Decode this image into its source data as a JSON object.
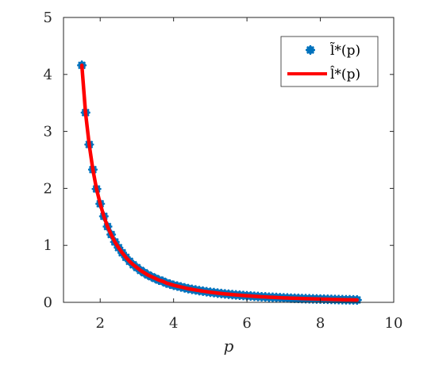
{
  "chart_data": {
    "type": "scatter",
    "xlabel": "p",
    "ylabel": "",
    "xlim": [
      1,
      10
    ],
    "ylim": [
      0,
      5
    ],
    "xticks": [
      "2",
      "4",
      "6",
      "8",
      "10"
    ],
    "yticks": [
      "0",
      "1",
      "2",
      "3",
      "4",
      "5"
    ],
    "grid": false,
    "legend_position": "top-right",
    "series": [
      {
        "name": "l̃*(p)",
        "style": "markers",
        "color": "#0072BD",
        "x": [
          1.5,
          1.6,
          1.7,
          1.8,
          1.9,
          2.0,
          2.1,
          2.2,
          2.3,
          2.4,
          2.5,
          2.6,
          2.7,
          2.8,
          2.9,
          3.0,
          3.1,
          3.2,
          3.3,
          3.4,
          3.5,
          3.6,
          3.7,
          3.8,
          3.9,
          4.0,
          4.1,
          4.2,
          4.3,
          4.4,
          4.5,
          4.6,
          4.7,
          4.8,
          4.9,
          5.0,
          5.1,
          5.2,
          5.3,
          5.4,
          5.5,
          5.6,
          5.7,
          5.8,
          5.9,
          6.0,
          6.1,
          6.2,
          6.3,
          6.4,
          6.5,
          6.6,
          6.7,
          6.8,
          6.9,
          7.0,
          7.1,
          7.2,
          7.3,
          7.4,
          7.5,
          7.6,
          7.7,
          7.8,
          7.9,
          8.0,
          8.1,
          8.2,
          8.3,
          8.4,
          8.5,
          8.6,
          8.7,
          8.8,
          8.9,
          9.0
        ],
        "y": [
          4.16,
          3.33,
          2.77,
          2.33,
          1.99,
          1.73,
          1.51,
          1.33,
          1.19,
          1.06,
          0.96,
          0.87,
          0.79,
          0.72,
          0.66,
          0.61,
          0.56,
          0.52,
          0.48,
          0.45,
          0.42,
          0.39,
          0.37,
          0.34,
          0.32,
          0.3,
          0.285,
          0.27,
          0.255,
          0.24,
          0.228,
          0.217,
          0.206,
          0.196,
          0.187,
          0.178,
          0.17,
          0.162,
          0.155,
          0.148,
          0.142,
          0.136,
          0.13,
          0.125,
          0.12,
          0.115,
          0.111,
          0.106,
          0.102,
          0.098,
          0.095,
          0.091,
          0.088,
          0.085,
          0.082,
          0.079,
          0.076,
          0.074,
          0.071,
          0.069,
          0.067,
          0.065,
          0.063,
          0.061,
          0.059,
          0.057,
          0.055,
          0.054,
          0.052,
          0.05,
          0.049,
          0.047,
          0.046,
          0.045,
          0.043,
          0.042
        ]
      },
      {
        "name": "l̂*(p)",
        "style": "line",
        "color": "#FF0000",
        "x": [
          1.5,
          1.6,
          1.7,
          1.8,
          1.9,
          2.0,
          2.1,
          2.2,
          2.3,
          2.4,
          2.5,
          2.6,
          2.7,
          2.8,
          2.9,
          3.0,
          3.1,
          3.2,
          3.3,
          3.4,
          3.5,
          3.6,
          3.7,
          3.8,
          3.9,
          4.0,
          4.1,
          4.2,
          4.3,
          4.4,
          4.5,
          4.6,
          4.7,
          4.8,
          4.9,
          5.0,
          5.1,
          5.2,
          5.3,
          5.4,
          5.5,
          5.6,
          5.7,
          5.8,
          5.9,
          6.0,
          6.1,
          6.2,
          6.3,
          6.4,
          6.5,
          6.6,
          6.7,
          6.8,
          6.9,
          7.0,
          7.1,
          7.2,
          7.3,
          7.4,
          7.5,
          7.6,
          7.7,
          7.8,
          7.9,
          8.0,
          8.1,
          8.2,
          8.3,
          8.4,
          8.5,
          8.6,
          8.7,
          8.8,
          8.9,
          9.0
        ],
        "y": [
          4.16,
          3.33,
          2.77,
          2.33,
          1.99,
          1.73,
          1.51,
          1.33,
          1.19,
          1.06,
          0.96,
          0.87,
          0.79,
          0.72,
          0.66,
          0.61,
          0.56,
          0.52,
          0.48,
          0.45,
          0.42,
          0.39,
          0.37,
          0.34,
          0.32,
          0.3,
          0.285,
          0.27,
          0.255,
          0.24,
          0.228,
          0.217,
          0.206,
          0.196,
          0.187,
          0.178,
          0.17,
          0.162,
          0.155,
          0.148,
          0.142,
          0.136,
          0.13,
          0.125,
          0.12,
          0.115,
          0.111,
          0.106,
          0.102,
          0.098,
          0.095,
          0.091,
          0.088,
          0.085,
          0.082,
          0.079,
          0.076,
          0.074,
          0.071,
          0.069,
          0.067,
          0.065,
          0.063,
          0.061,
          0.059,
          0.057,
          0.055,
          0.054,
          0.052,
          0.05,
          0.049,
          0.047,
          0.046,
          0.045,
          0.043,
          0.042
        ]
      }
    ]
  }
}
